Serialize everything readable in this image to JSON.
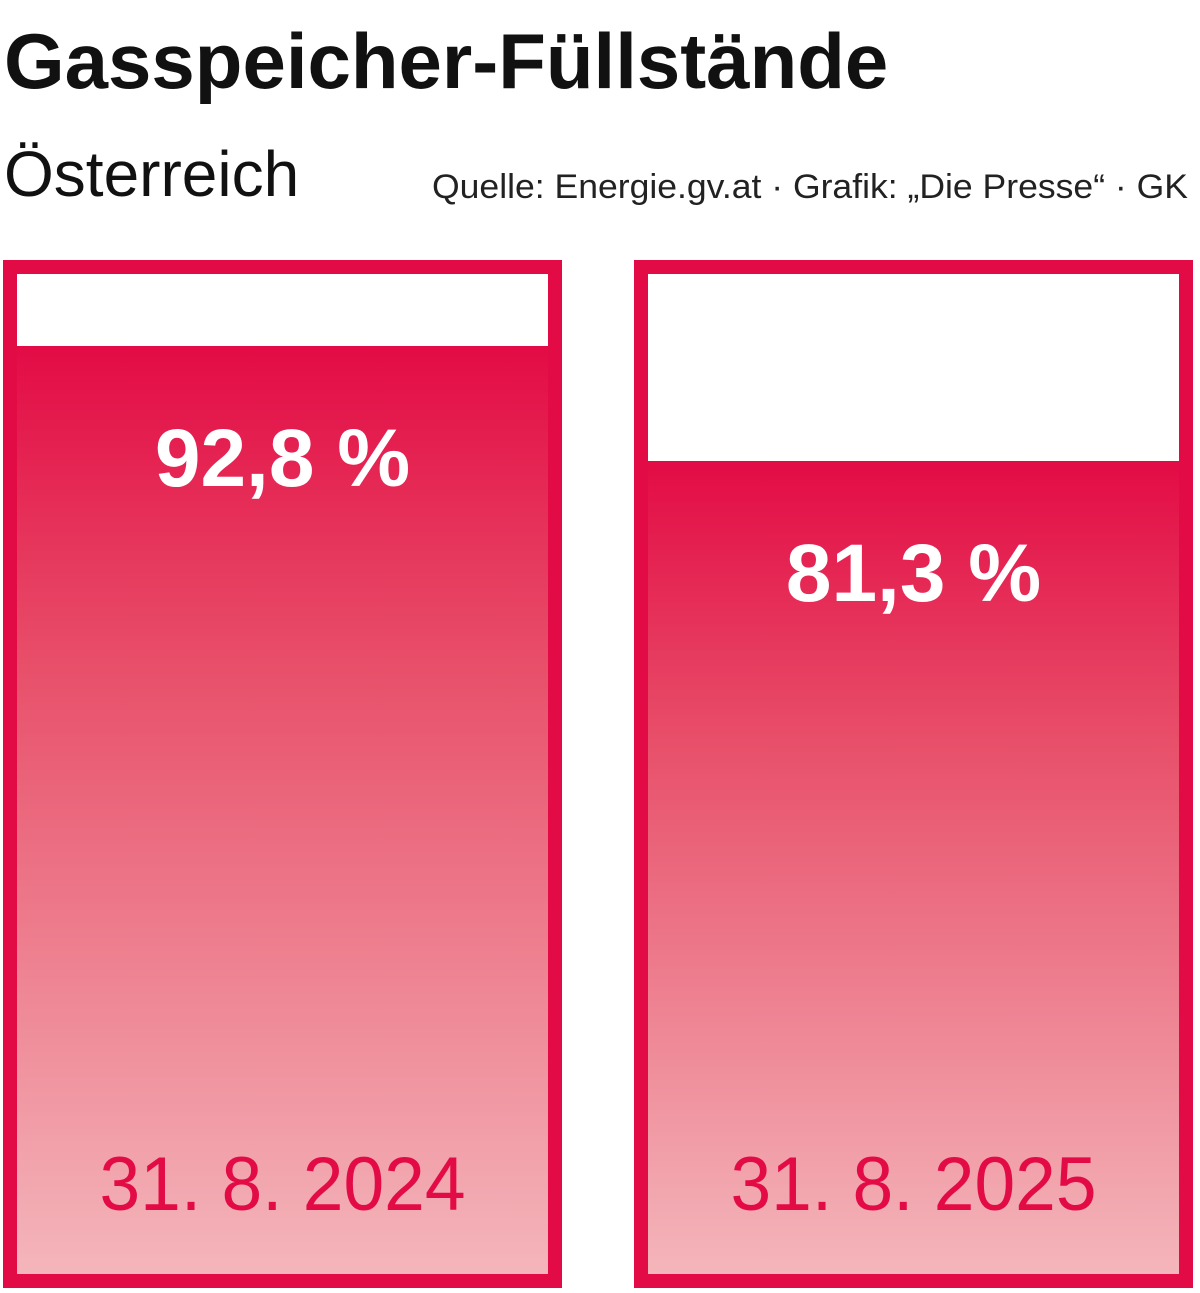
{
  "chart_data": {
    "type": "bar",
    "title": "Gasspeicher-Füllstände",
    "subtitle": "Österreich",
    "source": "Quelle: Energie.gv.at · Grafik: „Die Presse“ · GK",
    "categories": [
      "31. 8. 2024",
      "31. 8. 2025"
    ],
    "values": [
      92.8,
      81.3
    ],
    "value_labels": [
      "92,8 %",
      "81,3 %"
    ],
    "color": "#e30b45",
    "ylim": [
      0,
      100
    ]
  }
}
